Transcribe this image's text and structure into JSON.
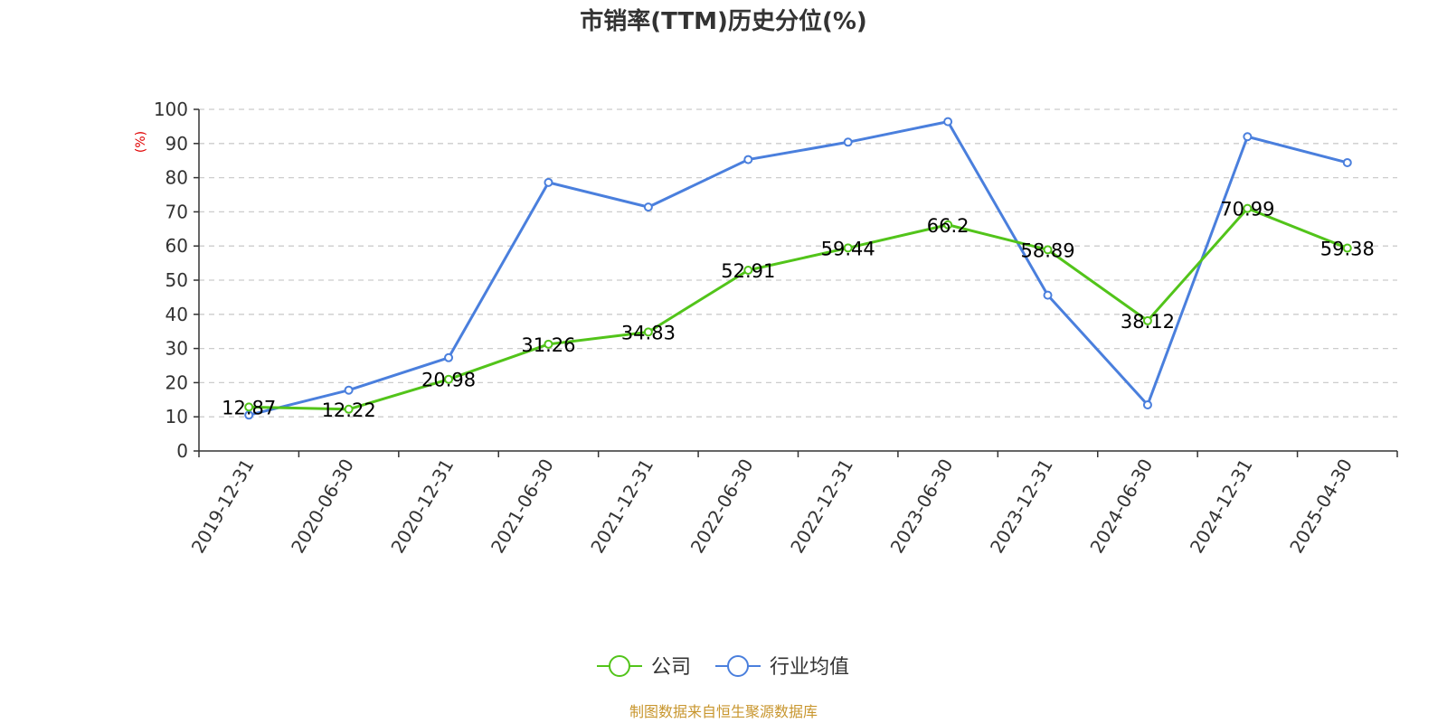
{
  "chart_data": {
    "type": "line",
    "title": "市销率(TTM)历史分位(%)",
    "ylabel": "(%)",
    "xlabel": "",
    "ylim": [
      0,
      100
    ],
    "yticks": [
      0,
      10,
      20,
      30,
      40,
      50,
      60,
      70,
      80,
      90,
      100
    ],
    "grid": true,
    "legend_position": "bottom",
    "categories": [
      "2019-12-31",
      "2020-06-30",
      "2020-12-31",
      "2021-06-30",
      "2021-12-31",
      "2022-06-30",
      "2022-12-31",
      "2023-06-30",
      "2023-12-31",
      "2024-06-30",
      "2024-12-31",
      "2025-04-30"
    ],
    "series": [
      {
        "name": "公司",
        "color": "#52c41a",
        "values": [
          12.87,
          12.22,
          20.98,
          31.26,
          34.83,
          52.91,
          59.44,
          66.2,
          58.89,
          38.12,
          70.99,
          59.38
        ],
        "labels": [
          "12.87",
          "12.22",
          "20.98",
          "31.26",
          "34.83",
          "52.91",
          "59.44",
          "66.2",
          "58.89",
          "38.12",
          "70.99",
          "59.38"
        ]
      },
      {
        "name": "行业均值",
        "color": "#4a7fdd",
        "values": [
          10.5,
          17.8,
          27.3,
          78.6,
          71.4,
          85.3,
          90.4,
          96.4,
          45.6,
          13.5,
          92.0,
          84.4
        ]
      }
    ],
    "source": "制图数据来自恒生聚源数据库"
  }
}
